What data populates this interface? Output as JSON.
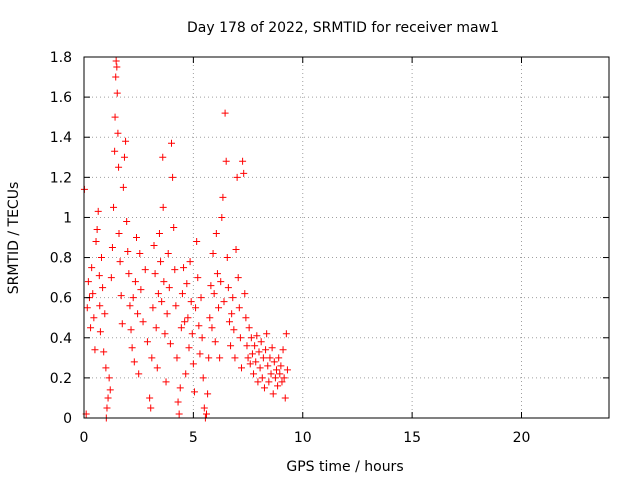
{
  "chart_data": {
    "type": "scatter",
    "title": "Day 178 of 2022, SRMTID for receiver maw1",
    "xlabel": "GPS time / hours",
    "ylabel": "SRMTID / TECUs",
    "xlim": [
      0,
      24
    ],
    "ylim": [
      0,
      1.8
    ],
    "xticks": [
      0,
      5,
      10,
      15,
      20
    ],
    "yticks": [
      0,
      0.2,
      0.4,
      0.6,
      0.8,
      1,
      1.2,
      1.4,
      1.6,
      1.8
    ],
    "xtick_labels": [
      "0",
      "5",
      "10",
      "15",
      "20"
    ],
    "ytick_labels": [
      "0",
      "0.2",
      "0.4",
      "0.6",
      "0.8",
      "1",
      "1.2",
      "1.4",
      "1.6",
      "1.8"
    ],
    "grid": true,
    "marker": "plus",
    "marker_color": "#ff0000",
    "series": [
      {
        "points": [
          [
            0.02,
            1.14
          ],
          [
            0.1,
            0.02
          ],
          [
            0.15,
            0.55
          ],
          [
            0.2,
            0.68
          ],
          [
            0.25,
            0.6
          ],
          [
            0.3,
            0.45
          ],
          [
            0.35,
            0.75
          ],
          [
            0.4,
            0.62
          ],
          [
            0.45,
            0.5
          ],
          [
            0.5,
            0.34
          ],
          [
            0.55,
            0.88
          ],
          [
            0.6,
            0.94
          ],
          [
            0.65,
            1.03
          ],
          [
            0.7,
            0.71
          ],
          [
            0.72,
            0.56
          ],
          [
            0.75,
            0.43
          ],
          [
            0.8,
            0.8
          ],
          [
            0.85,
            0.65
          ],
          [
            0.9,
            0.33
          ],
          [
            0.95,
            0.52
          ],
          [
            1.0,
            0.25
          ],
          [
            1.02,
            0.0
          ],
          [
            1.05,
            0.05
          ],
          [
            1.1,
            0.1
          ],
          [
            1.15,
            0.2
          ],
          [
            1.2,
            0.14
          ],
          [
            1.25,
            0.7
          ],
          [
            1.3,
            0.85
          ],
          [
            1.35,
            1.05
          ],
          [
            1.4,
            1.33
          ],
          [
            1.42,
            1.5
          ],
          [
            1.45,
            1.7
          ],
          [
            1.47,
            1.78
          ],
          [
            1.5,
            1.75
          ],
          [
            1.52,
            1.62
          ],
          [
            1.55,
            1.42
          ],
          [
            1.58,
            1.25
          ],
          [
            1.6,
            0.92
          ],
          [
            1.65,
            0.78
          ],
          [
            1.7,
            0.61
          ],
          [
            1.75,
            0.47
          ],
          [
            1.8,
            1.15
          ],
          [
            1.85,
            1.3
          ],
          [
            1.9,
            1.38
          ],
          [
            1.95,
            0.98
          ],
          [
            2.0,
            0.83
          ],
          [
            2.05,
            0.72
          ],
          [
            2.1,
            0.56
          ],
          [
            2.15,
            0.44
          ],
          [
            2.2,
            0.35
          ],
          [
            2.25,
            0.6
          ],
          [
            2.3,
            0.28
          ],
          [
            2.35,
            0.68
          ],
          [
            2.4,
            0.9
          ],
          [
            2.45,
            0.52
          ],
          [
            2.5,
            0.22
          ],
          [
            2.55,
            0.82
          ],
          [
            2.6,
            0.64
          ],
          [
            2.7,
            0.48
          ],
          [
            2.8,
            0.74
          ],
          [
            2.9,
            0.38
          ],
          [
            3.0,
            0.1
          ],
          [
            3.05,
            0.05
          ],
          [
            3.1,
            0.3
          ],
          [
            3.15,
            0.55
          ],
          [
            3.2,
            0.86
          ],
          [
            3.25,
            0.72
          ],
          [
            3.3,
            0.45
          ],
          [
            3.35,
            0.25
          ],
          [
            3.4,
            0.62
          ],
          [
            3.45,
            0.92
          ],
          [
            3.5,
            0.78
          ],
          [
            3.55,
            0.58
          ],
          [
            3.6,
            1.3
          ],
          [
            3.62,
            1.05
          ],
          [
            3.65,
            0.68
          ],
          [
            3.7,
            0.42
          ],
          [
            3.75,
            0.18
          ],
          [
            3.8,
            0.52
          ],
          [
            3.85,
            0.82
          ],
          [
            3.9,
            0.65
          ],
          [
            3.95,
            0.37
          ],
          [
            4.0,
            1.37
          ],
          [
            4.05,
            1.2
          ],
          [
            4.1,
            0.95
          ],
          [
            4.15,
            0.74
          ],
          [
            4.2,
            0.56
          ],
          [
            4.25,
            0.3
          ],
          [
            4.3,
            0.08
          ],
          [
            4.35,
            0.02
          ],
          [
            4.4,
            0.15
          ],
          [
            4.45,
            0.45
          ],
          [
            4.5,
            0.62
          ],
          [
            4.55,
            0.75
          ],
          [
            4.6,
            0.48
          ],
          [
            4.65,
            0.22
          ],
          [
            4.7,
            0.67
          ],
          [
            4.75,
            0.5
          ],
          [
            4.8,
            0.35
          ],
          [
            4.85,
            0.78
          ],
          [
            4.9,
            0.58
          ],
          [
            4.95,
            0.42
          ],
          [
            5.0,
            0.27
          ],
          [
            5.05,
            0.13
          ],
          [
            5.1,
            0.55
          ],
          [
            5.15,
            0.88
          ],
          [
            5.2,
            0.7
          ],
          [
            5.25,
            0.46
          ],
          [
            5.3,
            0.32
          ],
          [
            5.35,
            0.6
          ],
          [
            5.4,
            0.4
          ],
          [
            5.45,
            0.2
          ],
          [
            5.5,
            0.05
          ],
          [
            5.55,
            0.0
          ],
          [
            5.6,
            0.02
          ],
          [
            5.65,
            0.12
          ],
          [
            5.7,
            0.3
          ],
          [
            5.75,
            0.5
          ],
          [
            5.8,
            0.66
          ],
          [
            5.85,
            0.45
          ],
          [
            5.9,
            0.82
          ],
          [
            5.95,
            0.62
          ],
          [
            6.0,
            0.38
          ],
          [
            6.05,
            0.92
          ],
          [
            6.1,
            0.72
          ],
          [
            6.15,
            0.55
          ],
          [
            6.2,
            0.3
          ],
          [
            6.25,
            0.68
          ],
          [
            6.3,
            1.0
          ],
          [
            6.35,
            1.1
          ],
          [
            6.4,
            0.58
          ],
          [
            6.45,
            1.52
          ],
          [
            6.5,
            1.28
          ],
          [
            6.55,
            0.8
          ],
          [
            6.6,
            0.65
          ],
          [
            6.65,
            0.48
          ],
          [
            6.7,
            0.36
          ],
          [
            6.75,
            0.52
          ],
          [
            6.8,
            0.6
          ],
          [
            6.85,
            0.44
          ],
          [
            6.9,
            0.3
          ],
          [
            6.95,
            0.84
          ],
          [
            7.0,
            1.2
          ],
          [
            7.05,
            0.7
          ],
          [
            7.1,
            0.55
          ],
          [
            7.15,
            0.4
          ],
          [
            7.2,
            0.25
          ],
          [
            7.25,
            1.28
          ],
          [
            7.3,
            1.22
          ],
          [
            7.35,
            0.62
          ],
          [
            7.4,
            0.5
          ],
          [
            7.45,
            0.36
          ],
          [
            7.5,
            0.3
          ],
          [
            7.55,
            0.45
          ],
          [
            7.6,
            0.27
          ],
          [
            7.65,
            0.4
          ],
          [
            7.7,
            0.32
          ],
          [
            7.75,
            0.22
          ],
          [
            7.8,
            0.36
          ],
          [
            7.85,
            0.28
          ],
          [
            7.9,
            0.41
          ],
          [
            7.95,
            0.18
          ],
          [
            8.0,
            0.33
          ],
          [
            8.05,
            0.25
          ],
          [
            8.1,
            0.38
          ],
          [
            8.15,
            0.2
          ],
          [
            8.2,
            0.3
          ],
          [
            8.25,
            0.15
          ],
          [
            8.3,
            0.34
          ],
          [
            8.35,
            0.42
          ],
          [
            8.4,
            0.26
          ],
          [
            8.45,
            0.18
          ],
          [
            8.5,
            0.3
          ],
          [
            8.55,
            0.22
          ],
          [
            8.6,
            0.35
          ],
          [
            8.65,
            0.12
          ],
          [
            8.7,
            0.28
          ],
          [
            8.75,
            0.2
          ],
          [
            8.8,
            0.24
          ],
          [
            8.85,
            0.16
          ],
          [
            8.9,
            0.3
          ],
          [
            8.95,
            0.22
          ],
          [
            9.0,
            0.26
          ],
          [
            9.05,
            0.18
          ],
          [
            9.1,
            0.34
          ],
          [
            9.15,
            0.2
          ],
          [
            9.2,
            0.1
          ],
          [
            9.25,
            0.42
          ],
          [
            9.3,
            0.24
          ]
        ]
      }
    ]
  }
}
